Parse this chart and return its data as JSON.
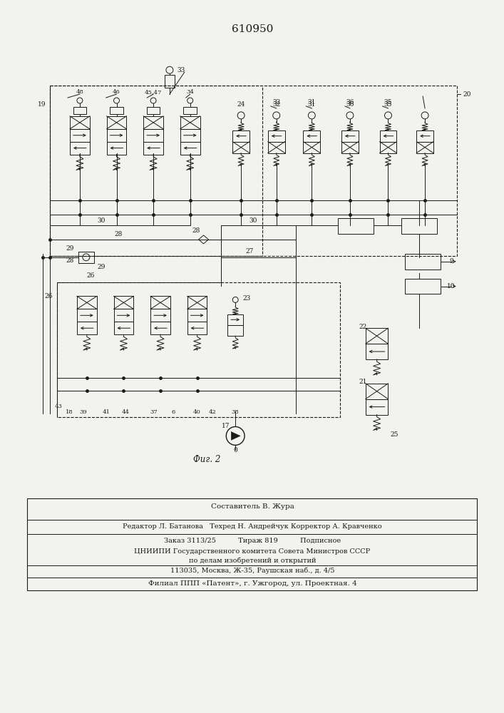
{
  "title": "610950",
  "fig_label": "Фиг. 2",
  "bg_color": "#f2f2ee",
  "line_color": "#1a1a1a",
  "footer_lines": [
    "Составитель В. Жура",
    "Редактор Л. Батанова   Техред Н. Андрейчук Корректор А. Кравченко",
    "Заказ 3113/25          Тираж 819          Подписное",
    "ЦНИИПИ Государственного комитета Совета Министров СССР",
    "по делам изобретений и открытий",
    "113035, Москва, Ж-35, Раушская наб., д. 4/5",
    "Филиал ППП «Патент», г. Ужгород, ул. Проектная. 4"
  ]
}
